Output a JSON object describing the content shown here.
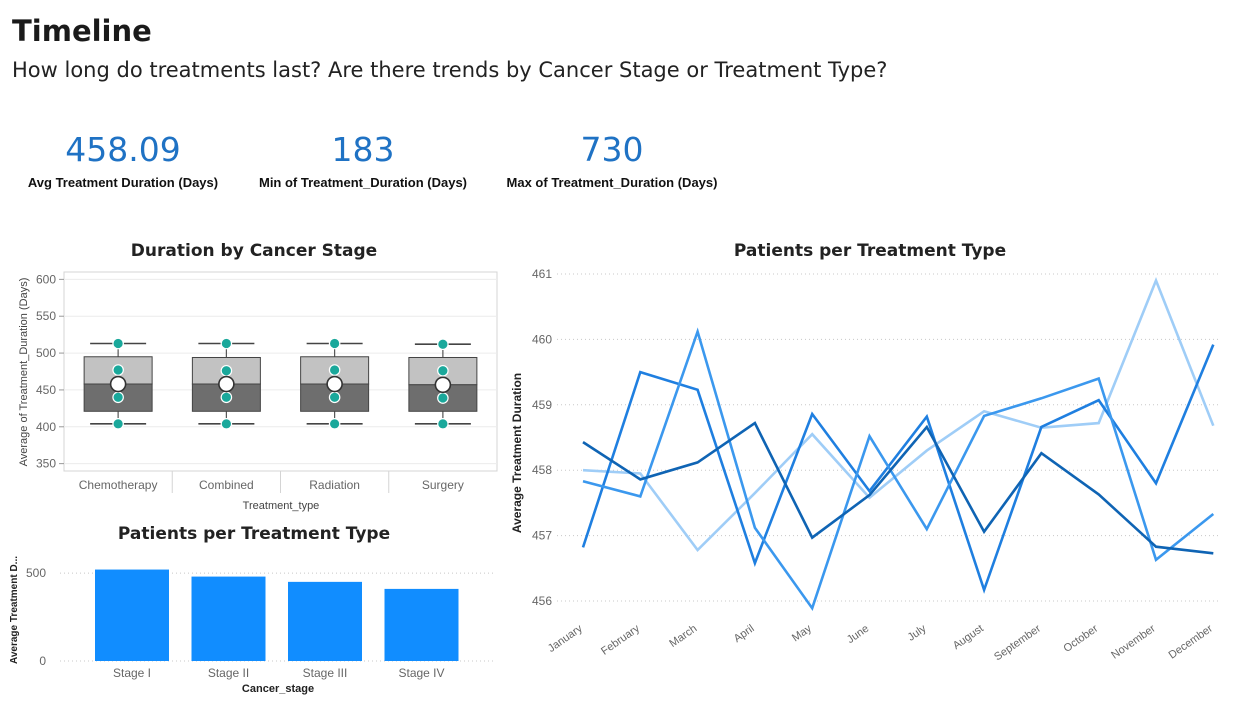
{
  "header": {
    "title": "Timeline",
    "subtitle": "How long do treatments last? Are there trends by Cancer Stage or Treatment Type?"
  },
  "kpis": [
    {
      "value": "458.09",
      "label": "Avg Treatment Duration (Days)"
    },
    {
      "value": "183",
      "label": "Min of Treatment_Duration (Days)"
    },
    {
      "value": "730",
      "label": "Max of Treatment_Duration (Days)"
    }
  ],
  "colors": {
    "kpi": "#1f72c4",
    "bar": "#118dff",
    "box_upper": "#c2c2c2",
    "box_lower": "#6e6e6e",
    "box_point": "#1aa89b",
    "lines": [
      "#9fcdf7",
      "#1f7fe0",
      "#3b98ee",
      "#0f64b4"
    ]
  },
  "chart_data": [
    {
      "type": "box",
      "title": "Duration by Cancer Stage",
      "xlabel": "Treatment_type",
      "ylabel": "Average of Treatment_Duration (Days)",
      "ylim": [
        340,
        610
      ],
      "yticks": [
        350,
        400,
        450,
        500,
        550,
        600
      ],
      "grid": true,
      "categories": [
        "Chemotherapy",
        "Combined",
        "Radiation",
        "Surgery"
      ],
      "boxes": [
        {
          "min": 404,
          "q1": 421,
          "median": 458,
          "q3": 495,
          "max": 513,
          "points": [
            513,
            477,
            440,
            404
          ],
          "mean": 458
        },
        {
          "min": 404,
          "q1": 421,
          "median": 458,
          "q3": 494,
          "max": 513,
          "points": [
            513,
            476,
            440,
            404
          ],
          "mean": 458
        },
        {
          "min": 404,
          "q1": 421,
          "median": 458,
          "q3": 495,
          "max": 513,
          "points": [
            513,
            477,
            440,
            404
          ],
          "mean": 458
        },
        {
          "min": 404,
          "q1": 421,
          "median": 457,
          "q3": 494,
          "max": 512,
          "points": [
            512,
            476,
            439,
            404
          ],
          "mean": 457
        }
      ]
    },
    {
      "type": "bar",
      "title": "Patients per Treatment Type",
      "xlabel": "Cancer_stage",
      "ylabel": "Average Treatment D...",
      "categories": [
        "Stage I",
        "Stage II",
        "Stage III",
        "Stage IV"
      ],
      "values": [
        520,
        480,
        450,
        410
      ],
      "ylim": [
        0,
        580
      ],
      "yticks": [
        0,
        500
      ],
      "grid": true
    },
    {
      "type": "line",
      "title": "Patients per Treatment Type",
      "ylabel": "Average Treatment Duration",
      "xlabel": "",
      "ylim": [
        455.5,
        461.1
      ],
      "yticks": [
        456,
        457,
        458,
        459,
        460,
        461
      ],
      "grid": true,
      "x": [
        "January",
        "February",
        "March",
        "April",
        "May",
        "June",
        "July",
        "August",
        "September",
        "October",
        "November",
        "December"
      ],
      "series": [
        {
          "values": [
            458.0,
            457.95,
            456.78,
            457.65,
            458.55,
            457.58,
            458.3,
            458.9,
            458.65,
            458.72,
            460.9,
            458.68
          ]
        },
        {
          "values": [
            456.82,
            459.5,
            459.23,
            456.58,
            458.86,
            457.68,
            458.82,
            456.17,
            458.66,
            459.07,
            457.8,
            459.92
          ]
        },
        {
          "values": [
            457.83,
            457.6,
            460.12,
            457.12,
            455.89,
            458.52,
            457.1,
            458.83,
            459.1,
            459.4,
            456.63,
            457.33
          ]
        },
        {
          "values": [
            458.43,
            457.86,
            458.12,
            458.72,
            456.97,
            457.62,
            458.66,
            457.06,
            458.26,
            457.63,
            456.83,
            456.73
          ]
        }
      ]
    }
  ]
}
